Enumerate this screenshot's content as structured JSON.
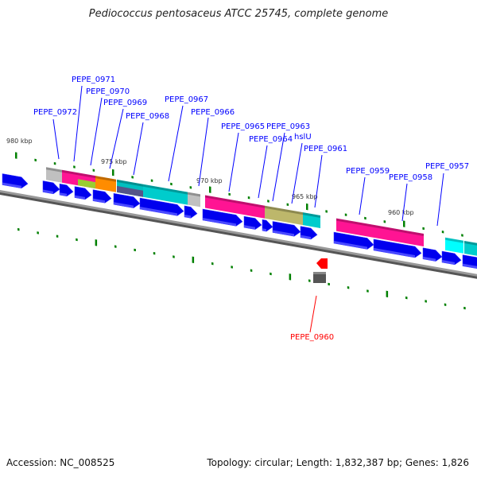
{
  "title": "Pediococcus pentosaceus ATCC 25745, complete genome",
  "accession": "Accession: NC_008525",
  "topology": "Topology: circular; Length: 1,832,387 bp; Genes: 1,826",
  "scale_labels": [
    "980 kbp",
    "975 kbp",
    "970 kbp",
    "965 kbp",
    "960 kbp"
  ],
  "gene_labels": [
    "PEPE_0972",
    "PEPE_0971",
    "PEPE_0970",
    "PEPE_0969",
    "PEPE_0968",
    "PEPE_0967",
    "PEPE_0966",
    "PEPE_0965",
    "PEPE_0963",
    "PEPE_0964",
    "hslU",
    "PEPE_0961",
    "PEPE_0959",
    "PEPE_0958",
    "PEPE_0957"
  ],
  "highlight_label": "PEPE_0960",
  "colors": {
    "cds": "#0000ee",
    "track": "#808080",
    "tick": "#008000",
    "label": "#0000ff",
    "highlight": "#ff0000"
  }
}
